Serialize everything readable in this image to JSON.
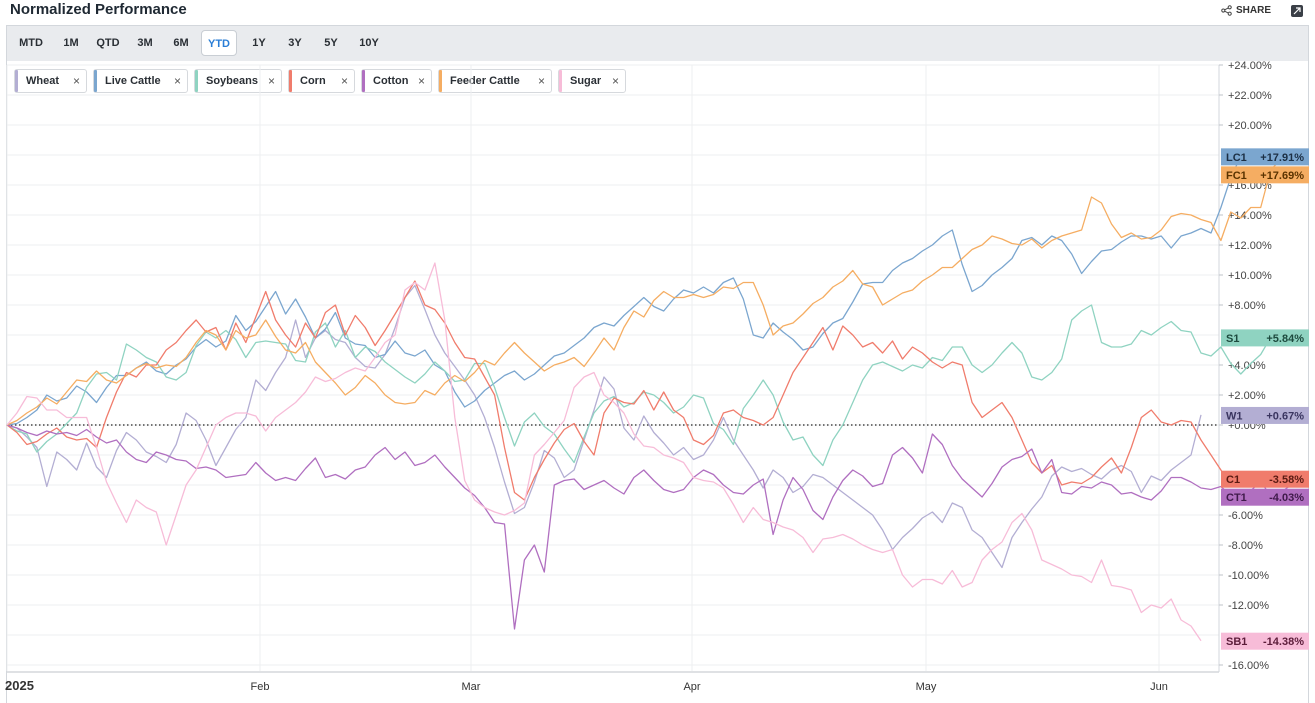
{
  "header": {
    "title": "Normalized Performance",
    "share_label": "SHARE"
  },
  "toolbar": {
    "ranges": [
      "MTD",
      "1M",
      "QTD",
      "3M",
      "6M",
      "YTD",
      "1Y",
      "3Y",
      "5Y",
      "10Y"
    ],
    "active": "YTD"
  },
  "legend_chips": [
    {
      "label": "Wheat",
      "color": "#b3aed3",
      "close": "×"
    },
    {
      "label": "Live Cattle",
      "color": "#7ba6cf",
      "close": "×"
    },
    {
      "label": "Soybeans",
      "color": "#8fd3c1",
      "close": "×"
    },
    {
      "label": "Corn",
      "color": "#f07c6c",
      "close": "×"
    },
    {
      "label": "Cotton",
      "color": "#b06fc0",
      "close": "×"
    },
    {
      "label": "Feeder Cattle",
      "color": "#f5ad62",
      "close": "×"
    },
    {
      "label": "Sugar",
      "color": "#f7bcd8",
      "close": "×"
    }
  ],
  "chart_data": {
    "type": "line",
    "title": "Normalized Performance",
    "ylim": [
      -16,
      24
    ],
    "y_ticks": [
      "+24.00%",
      "+22.00%",
      "+20.00%",
      "+16.00%",
      "+14.00%",
      "+12.00%",
      "+10.00%",
      "+8.00%",
      "+4.00%",
      "+2.00%",
      "+0.00%",
      "-6.00%",
      "-8.00%",
      "-10.00%",
      "-12.00%",
      "-16.00%"
    ],
    "y_tick_values": [
      24,
      22,
      20,
      16,
      14,
      12,
      10,
      8,
      4,
      2,
      0,
      -6,
      -8,
      -10,
      -12,
      -16
    ],
    "x_ticks": [
      "2025",
      "Feb",
      "Mar",
      "Apr",
      "May",
      "Jun"
    ],
    "grid": true,
    "baseline": 0,
    "series": [
      {
        "name": "Wheat",
        "symbol": "W1",
        "last_label": "+0.67%",
        "last": 0.67,
        "color": "#b3aed3",
        "label_text_color": "#3a3560",
        "values": [
          0,
          -0.2,
          -0.8,
          -1.5,
          -4.1,
          -1.8,
          -2.3,
          -3.0,
          -1.2,
          -2.8,
          -3.5,
          -1.7,
          -0.5,
          -1.0,
          -1.8,
          -2.1,
          -2.5,
          -1.3,
          0.8,
          0.3,
          -1.0,
          -2.7,
          -1.5,
          -0.3,
          0.5,
          3.0,
          2.3,
          3.5,
          4.5,
          7.0,
          4.5,
          5.8,
          6.3,
          5.7,
          5.5,
          4.5,
          3.9,
          3.8,
          4.7,
          6.5,
          8.5,
          9.3,
          7.7,
          6.0,
          4.8,
          3.9,
          3.0,
          2.0,
          0.5,
          -1.5,
          -3.8,
          -5.9,
          -5.5,
          -3.8,
          -1.7,
          -2.2,
          -3.5,
          -3.0,
          -1.0,
          1.0,
          3.2,
          2.4,
          -0.2,
          -1.0,
          0.6,
          -0.5,
          -1.2,
          -2.0,
          -1.5,
          -2.3,
          -2.0,
          -1.0,
          0.5,
          -1.0,
          -2.0,
          -3.0,
          -4.2,
          -3.0,
          -3.5,
          -4.5,
          -4.1,
          -3.3,
          -3.5,
          -4.0,
          -4.5,
          -5.0,
          -5.5,
          -6.0,
          -7.0,
          -8.3,
          -7.5,
          -6.9,
          -6.2,
          -5.8,
          -6.5,
          -5.2,
          -5.5,
          -7.0,
          -7.5,
          -8.5,
          -9.5,
          -7.5,
          -6.5,
          -5.6,
          -4.8,
          -3.4,
          -2.8,
          -3.1,
          -2.9,
          -3.3,
          -3.6,
          -3.0,
          -2.7,
          -3.1,
          -4.5,
          -3.4,
          -3.7,
          -3.0,
          -2.5,
          -2.0,
          0.67
        ]
      },
      {
        "name": "Live Cattle",
        "symbol": "LC1",
        "last_label": "+17.91%",
        "last": 17.91,
        "color": "#7ba6cf",
        "label_text_color": "#1c2f44",
        "values": [
          0,
          0.1,
          0.5,
          1.0,
          2.0,
          1.6,
          1.8,
          2.6,
          2.2,
          1.5,
          2.5,
          3.3,
          3.3,
          3.8,
          4.2,
          3.6,
          3.4,
          4.0,
          4.4,
          5.2,
          5.7,
          5.2,
          5.6,
          7.3,
          6.3,
          6.9,
          7.9,
          8.9,
          7.4,
          8.4,
          7.2,
          5.8,
          6.4,
          7.5,
          5.8,
          5.4,
          5.3,
          4.5,
          4.7,
          5.6,
          4.8,
          4.6,
          5.0,
          4.0,
          3.6,
          2.2,
          1.2,
          1.6,
          2.3,
          2.8,
          3.3,
          3.6,
          3.0,
          3.4,
          4.0,
          4.6,
          4.8,
          5.3,
          5.8,
          6.5,
          6.8,
          6.6,
          7.3,
          7.9,
          8.5,
          7.9,
          7.6,
          8.4,
          9.0,
          8.8,
          9.2,
          8.8,
          9.5,
          9.8,
          8.4,
          6.0,
          5.8,
          6.8,
          6.2,
          5.7,
          5.0,
          5.2,
          6.1,
          6.8,
          7.1,
          8.2,
          9.4,
          9.5,
          9.5,
          10.3,
          10.8,
          11.1,
          11.6,
          12.0,
          12.6,
          13.0,
          10.7,
          8.9,
          9.3,
          10.0,
          10.5,
          11.1,
          12.3,
          12.5,
          12.0,
          12.6,
          12.3,
          11.4,
          10.1,
          10.9,
          11.6,
          11.7,
          12.2,
          12.6,
          12.6,
          12.4,
          12.6,
          11.8,
          12.6,
          12.8,
          13.1,
          12.8,
          14.5,
          16.5,
          17.91
        ]
      },
      {
        "name": "Soybeans",
        "symbol": "S1",
        "last_label": "+5.84%",
        "last": 5.84,
        "color": "#8fd3c1",
        "label_text_color": "#1d4a3e",
        "values": [
          0,
          -0.4,
          -0.6,
          -1.8,
          -1.1,
          -0.6,
          0.1,
          0.8,
          2.5,
          3.4,
          3.5,
          3.0,
          5.4,
          5.0,
          4.5,
          4.2,
          3.2,
          3.0,
          3.5,
          5.3,
          6.2,
          5.8,
          6.3,
          5.7,
          4.5,
          5.5,
          5.6,
          5.5,
          5.4,
          4.3,
          4.2,
          6.2,
          6.8,
          5.2,
          6.3,
          4.5,
          5.2,
          4.9,
          4.2,
          3.7,
          3.2,
          2.8,
          3.4,
          4.2,
          3.6,
          2.9,
          3.0,
          4.1,
          4.1,
          2.5,
          0.5,
          -1.4,
          0.2,
          0.8,
          -0.1,
          -0.6,
          -1.6,
          -2.5,
          -0.8,
          0.8,
          1.6,
          1.9,
          1.2,
          1.5,
          2.2,
          2.0,
          1.5,
          0.8,
          1.2,
          2.0,
          1.8,
          0.1,
          -0.3,
          -1.3,
          1.1,
          2.0,
          3.0,
          2.0,
          0.2,
          -1.0,
          -0.8,
          -2.0,
          -2.7,
          -1.0,
          0.0,
          1.5,
          3.0,
          4.0,
          4.2,
          3.9,
          3.6,
          4.0,
          3.8,
          4.5,
          4.3,
          5.2,
          5.2,
          4.0,
          3.5,
          4.0,
          4.8,
          5.5,
          4.8,
          3.2,
          3.0,
          3.5,
          4.4,
          7.0,
          7.6,
          8.0,
          5.5,
          5.2,
          5.2,
          5.4,
          6.3,
          6.0,
          6.5,
          6.9,
          6.3,
          6.2,
          4.8,
          4.6,
          5.2,
          4.1,
          3.4,
          4.1,
          4.7,
          5.84
        ]
      },
      {
        "name": "Corn",
        "symbol": "C1",
        "last_label": "-3.58%",
        "last": -3.58,
        "color": "#f07c6c",
        "label_text_color": "#5a1a12",
        "values": [
          0,
          -0.5,
          -1.3,
          -1.1,
          -0.6,
          -0.2,
          -0.8,
          -1.0,
          -0.9,
          -1.5,
          0.5,
          2.2,
          3.5,
          3.2,
          4.0,
          4.0,
          5.0,
          5.5,
          6.3,
          7.0,
          6.2,
          6.5,
          5.0,
          6.8,
          5.5,
          7.2,
          8.9,
          7.0,
          6.0,
          5.2,
          6.8,
          5.8,
          7.5,
          8.0,
          6.0,
          7.3,
          6.5,
          5.3,
          6.3,
          7.4,
          8.5,
          9.6,
          8.0,
          7.7,
          6.8,
          5.5,
          4.5,
          4.4,
          3.2,
          2.0,
          -1.5,
          -4.5,
          -5.0,
          -3.5,
          -2.3,
          -1.2,
          -0.3,
          0.1,
          -1.1,
          -2.0,
          0.8,
          1.8,
          1.5,
          1.4,
          2.3,
          1.0,
          2.2,
          1.0,
          0.5,
          -1.0,
          -1.3,
          -0.7,
          0.8,
          1.0,
          0.5,
          0.3,
          0.0,
          0.5,
          2.0,
          3.5,
          4.5,
          5.5,
          6.5,
          5.0,
          6.6,
          6.0,
          5.2,
          5.5,
          4.8,
          5.6,
          4.4,
          5.2,
          4.8,
          4.2,
          3.8,
          4.2,
          4.0,
          1.5,
          0.5,
          1.0,
          1.5,
          0.5,
          -1.0,
          -2.5,
          -3.2,
          -2.7,
          -4.0,
          -3.8,
          -3.9,
          -3.5,
          -2.8,
          -2.2,
          -3.2,
          -1.5,
          0.5,
          1.0,
          0.2,
          0.0,
          0.3,
          0.2,
          -1.0,
          -2.0,
          -3.0,
          -4.0,
          -3.9,
          -4.0,
          -3.9,
          -3.58
        ]
      },
      {
        "name": "Cotton",
        "symbol": "CT1",
        "last_label": "-4.03%",
        "last": -4.03,
        "color": "#b06fc0",
        "label_text_color": "#3f1a4a",
        "values": [
          0,
          -0.2,
          -0.5,
          -0.7,
          -0.4,
          -0.6,
          -0.5,
          -0.7,
          -0.3,
          -0.8,
          -1.2,
          -1.0,
          -1.8,
          -2.3,
          -2.5,
          -1.8,
          -2.0,
          -2.3,
          -2.4,
          -2.9,
          -2.8,
          -3.0,
          -3.5,
          -3.4,
          -3.3,
          -2.5,
          -3.2,
          -3.7,
          -3.5,
          -3.7,
          -2.9,
          -2.2,
          -3.5,
          -3.3,
          -3.6,
          -3.0,
          -2.8,
          -2.0,
          -1.5,
          -2.3,
          -1.8,
          -2.7,
          -2.5,
          -2.0,
          -2.8,
          -3.5,
          -4.2,
          -4.7,
          -5.5,
          -6.5,
          -6.6,
          -13.6,
          -9.0,
          -8.0,
          -9.8,
          -4.0,
          -3.7,
          -3.6,
          -4.3,
          -4.0,
          -3.7,
          -4.2,
          -4.6,
          -3.5,
          -3.0,
          -3.7,
          -4.3,
          -4.5,
          -4.3,
          -3.5,
          -3.0,
          -3.3,
          -4.0,
          -4.5,
          -4.6,
          -4.0,
          -3.6,
          -7.3,
          -5.0,
          -3.5,
          -4.3,
          -5.7,
          -6.3,
          -4.8,
          -3.7,
          -3.0,
          -3.4,
          -4.1,
          -3.9,
          -2.0,
          -1.5,
          -2.2,
          -3.2,
          -0.6,
          -1.3,
          -2.7,
          -3.6,
          -4.2,
          -4.8,
          -3.9,
          -2.8,
          -2.3,
          -2.1,
          -1.6,
          -3.2,
          -2.3,
          -4.5,
          -4.6,
          -4.1,
          -4.2,
          -3.8,
          -4.0,
          -4.6,
          -4.5,
          -4.8,
          -5.0,
          -4.4,
          -3.5,
          -3.5,
          -3.8,
          -4.2,
          -4.3,
          -4.1,
          -4.7,
          -4.6,
          -4.4,
          -3.7,
          -4.8,
          -4.5,
          -4.03
        ]
      },
      {
        "name": "Feeder Cattle",
        "symbol": "FC1",
        "last_label": "+17.69%",
        "last": 17.69,
        "color": "#f5ad62",
        "label_text_color": "#5a3300",
        "values": [
          0,
          0.3,
          0.8,
          1.2,
          1.8,
          1.4,
          2.2,
          3.0,
          2.9,
          3.6,
          3.0,
          2.8,
          3.3,
          3.8,
          4.1,
          3.8,
          4.0,
          3.9,
          4.5,
          5.5,
          6.3,
          6.0,
          5.0,
          6.3,
          5.8,
          6.0,
          7.0,
          5.9,
          5.0,
          4.8,
          5.5,
          4.2,
          3.5,
          2.8,
          2.0,
          2.5,
          3.3,
          2.8,
          2.0,
          1.5,
          1.4,
          1.5,
          2.3,
          2.0,
          2.8,
          3.3,
          2.9,
          3.5,
          4.3,
          4.0,
          4.8,
          5.5,
          4.8,
          4.2,
          3.6,
          4.0,
          4.2,
          4.5,
          3.9,
          4.8,
          5.8,
          5.0,
          6.5,
          7.6,
          7.2,
          8.3,
          8.9,
          8.5,
          8.5,
          8.7,
          8.5,
          8.7,
          9.2,
          9.1,
          9.5,
          9.5,
          8.0,
          6.0,
          6.6,
          6.8,
          7.4,
          8.1,
          8.5,
          9.2,
          9.6,
          10.3,
          9.4,
          9.2,
          8.0,
          8.4,
          8.8,
          9.0,
          9.6,
          10.0,
          10.5,
          10.5,
          11.1,
          11.7,
          12.0,
          12.6,
          12.4,
          12.1,
          12.0,
          12.4,
          11.8,
          12.3,
          12.6,
          12.8,
          13.0,
          15.2,
          14.8,
          13.4,
          12.5,
          12.8,
          12.4,
          12.5,
          13.0,
          13.9,
          14.1,
          14.0,
          13.7,
          13.5,
          12.3,
          14.2,
          13.8,
          14.5,
          14.5,
          17.0,
          17.69
        ]
      },
      {
        "name": "Sugar",
        "symbol": "SB1",
        "last_label": "-14.38%",
        "last": -14.38,
        "color": "#f7bcd8",
        "label_text_color": "#5c1c3a",
        "values": [
          0,
          0.8,
          1.9,
          1.8,
          1.0,
          1.0,
          0.5,
          0.5,
          0.5,
          -1.5,
          -3.8,
          -5.2,
          -6.5,
          -5.0,
          -5.5,
          -5.8,
          -8.0,
          -6.0,
          -4.0,
          -3.0,
          -1.5,
          0.0,
          0.5,
          0.8,
          0.8,
          0.6,
          -0.4,
          0.5,
          1.0,
          1.5,
          2.2,
          3.2,
          2.9,
          3.1,
          3.5,
          3.8,
          3.6,
          4.5,
          5.5,
          6.0,
          9.0,
          9.5,
          9.0,
          10.8,
          7.0,
          0.5,
          -3.7,
          -5.0,
          -5.5,
          -5.8,
          -6.0,
          -5.7,
          -5.2,
          -2.0,
          -1.3,
          -0.5,
          0.3,
          2.5,
          3.2,
          3.5,
          2.0,
          1.5,
          0.8,
          -0.6,
          -1.4,
          -1.5,
          -2.0,
          -2.2,
          -2.5,
          -3.5,
          -3.7,
          -3.8,
          -4.2,
          -5.3,
          -6.5,
          -5.5,
          -6.3,
          -6.5,
          -6.8,
          -7.0,
          -7.5,
          -8.5,
          -7.6,
          -7.5,
          -7.3,
          -7.6,
          -8.0,
          -8.3,
          -8.5,
          -8.3,
          -10.0,
          -10.8,
          -10.3,
          -10.3,
          -10.6,
          -9.7,
          -10.8,
          -10.5,
          -9.0,
          -8.3,
          -7.8,
          -6.5,
          -5.9,
          -7.0,
          -9.0,
          -9.3,
          -9.6,
          -10.0,
          -10.1,
          -10.5,
          -9.0,
          -10.7,
          -10.8,
          -11.0,
          -12.5,
          -12.0,
          -12.2,
          -11.6,
          -13.0,
          -13.4,
          -14.38
        ]
      }
    ]
  }
}
